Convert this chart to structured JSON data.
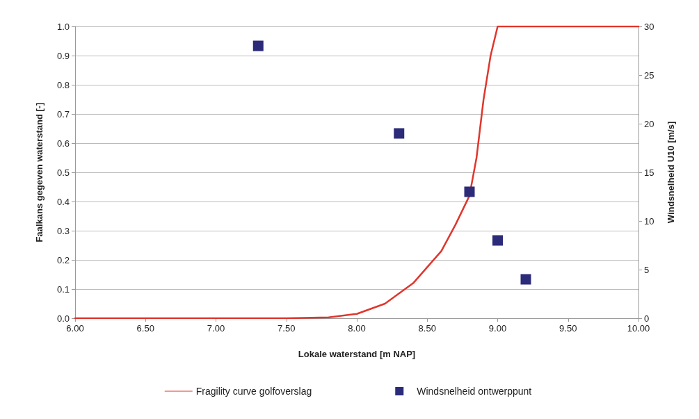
{
  "chart_data": {
    "type": "line",
    "xlabel": "Lokale waterstand [m NAP]",
    "ylabel": "Faalkans gegeven waterstand [-]",
    "y2label": "Windsnelheid U10 [m/s]",
    "xlim": [
      6,
      10
    ],
    "xticks": [
      {
        "value": 6,
        "label": "6.00"
      },
      {
        "value": 6.5,
        "label": "6.50"
      },
      {
        "value": 7,
        "label": "7.00"
      },
      {
        "value": 7.5,
        "label": "7.50"
      },
      {
        "value": 8,
        "label": "8.00"
      },
      {
        "value": 8.5,
        "label": "8.50"
      },
      {
        "value": 9,
        "label": "9.00"
      },
      {
        "value": 9.5,
        "label": "9.50"
      },
      {
        "value": 10,
        "label": "10.00"
      }
    ],
    "ylim": [
      0,
      1
    ],
    "yticks": [
      {
        "value": 0,
        "label": "0.0"
      },
      0.1,
      0.2,
      0.3,
      0.4,
      0.5,
      0.6,
      0.7,
      0.8,
      0.9,
      {
        "value": 1,
        "label": "1.0"
      }
    ],
    "y2lim": [
      0,
      30
    ],
    "y2ticks": [
      0,
      5,
      10,
      15,
      20,
      25,
      30
    ],
    "grid": "y",
    "legend": "bottom",
    "series": [
      {
        "name": "Fragility curve golfoverslag",
        "type": "line",
        "color": "#e0362c",
        "marker": "none",
        "line_style": "solid",
        "x": [
          6,
          7.5,
          7.8,
          8,
          8.2,
          8.4,
          8.6,
          8.7,
          8.8,
          8.85,
          8.9,
          8.95,
          9,
          10
        ],
        "values": [
          0,
          0,
          0.003,
          0.015,
          0.05,
          0.12,
          0.23,
          0.32,
          0.42,
          0.55,
          0.75,
          0.9,
          1,
          1
        ]
      },
      {
        "name": "Windsnelheid ontwerppunt",
        "type": "scatter",
        "axis": "y2",
        "color": "#2b2b7a",
        "marker": "square",
        "x": [
          7.3,
          8.3,
          8.8,
          9,
          9.2
        ],
        "values": [
          28,
          19,
          13,
          8,
          4
        ]
      }
    ]
  }
}
